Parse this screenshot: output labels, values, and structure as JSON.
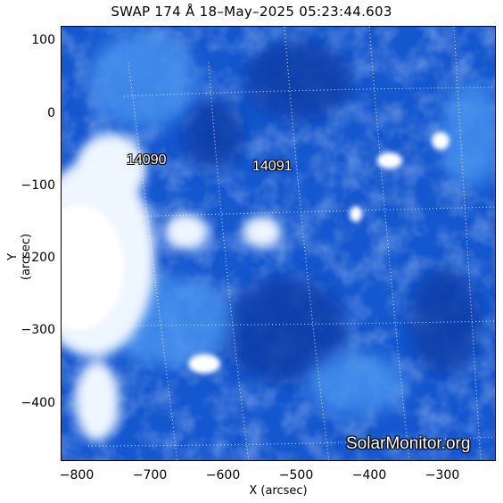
{
  "title": "SWAP 174 Å 18–May–2025 05:23:44.603",
  "x_axis": {
    "label": "X (arcsec)",
    "ticks": [
      "−800",
      "−700",
      "−600",
      "−500",
      "−400",
      "−300"
    ]
  },
  "y_axis": {
    "label": "Y (arcsec)",
    "ticks": [
      "100",
      "0",
      "−100",
      "−200",
      "−300",
      "−400"
    ]
  },
  "active_regions": [
    {
      "label": "14090"
    },
    {
      "label": "14091"
    }
  ],
  "watermark": "SolarMonitor.org",
  "colors": {
    "background": "#ffffff",
    "plasma_dark": "#0b3ea8",
    "plasma_mid": "#2f7fe8",
    "plasma_bright": "#d8ecff",
    "grid": "#ffffff"
  }
}
